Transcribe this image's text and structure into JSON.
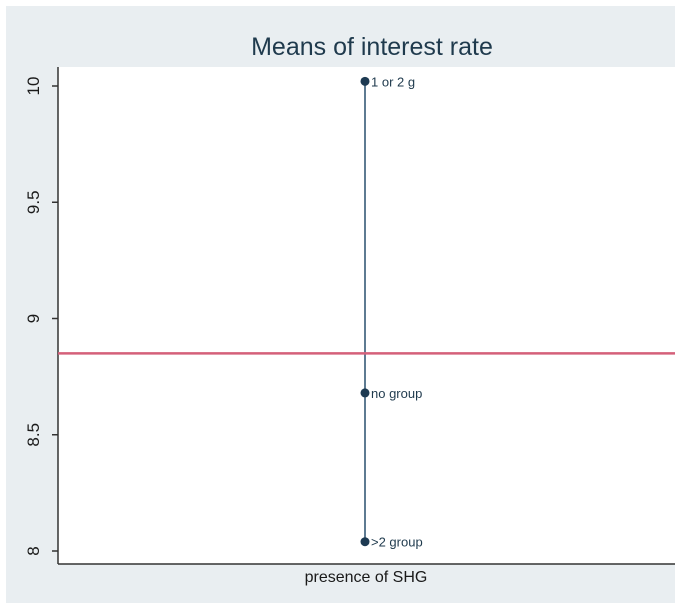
{
  "chart_data": {
    "type": "scatter",
    "title": "Means of interest rate",
    "xlabel": "presence of SHG",
    "ylabel": "",
    "ylim": [
      8,
      10
    ],
    "yticks": [
      "8",
      "8.5",
      "9",
      "9.5",
      "10"
    ],
    "points": [
      {
        "label": "1 or 2 g",
        "value": 10.02
      },
      {
        "label": "no group",
        "value": 8.68
      },
      {
        "label": ">2 group",
        "value": 8.04
      }
    ],
    "reference_line": {
      "value": 8.85,
      "color": "#d4607a"
    },
    "range_line_color": "#5e7b92",
    "marker_color": "#1d3a52",
    "grid": false
  }
}
